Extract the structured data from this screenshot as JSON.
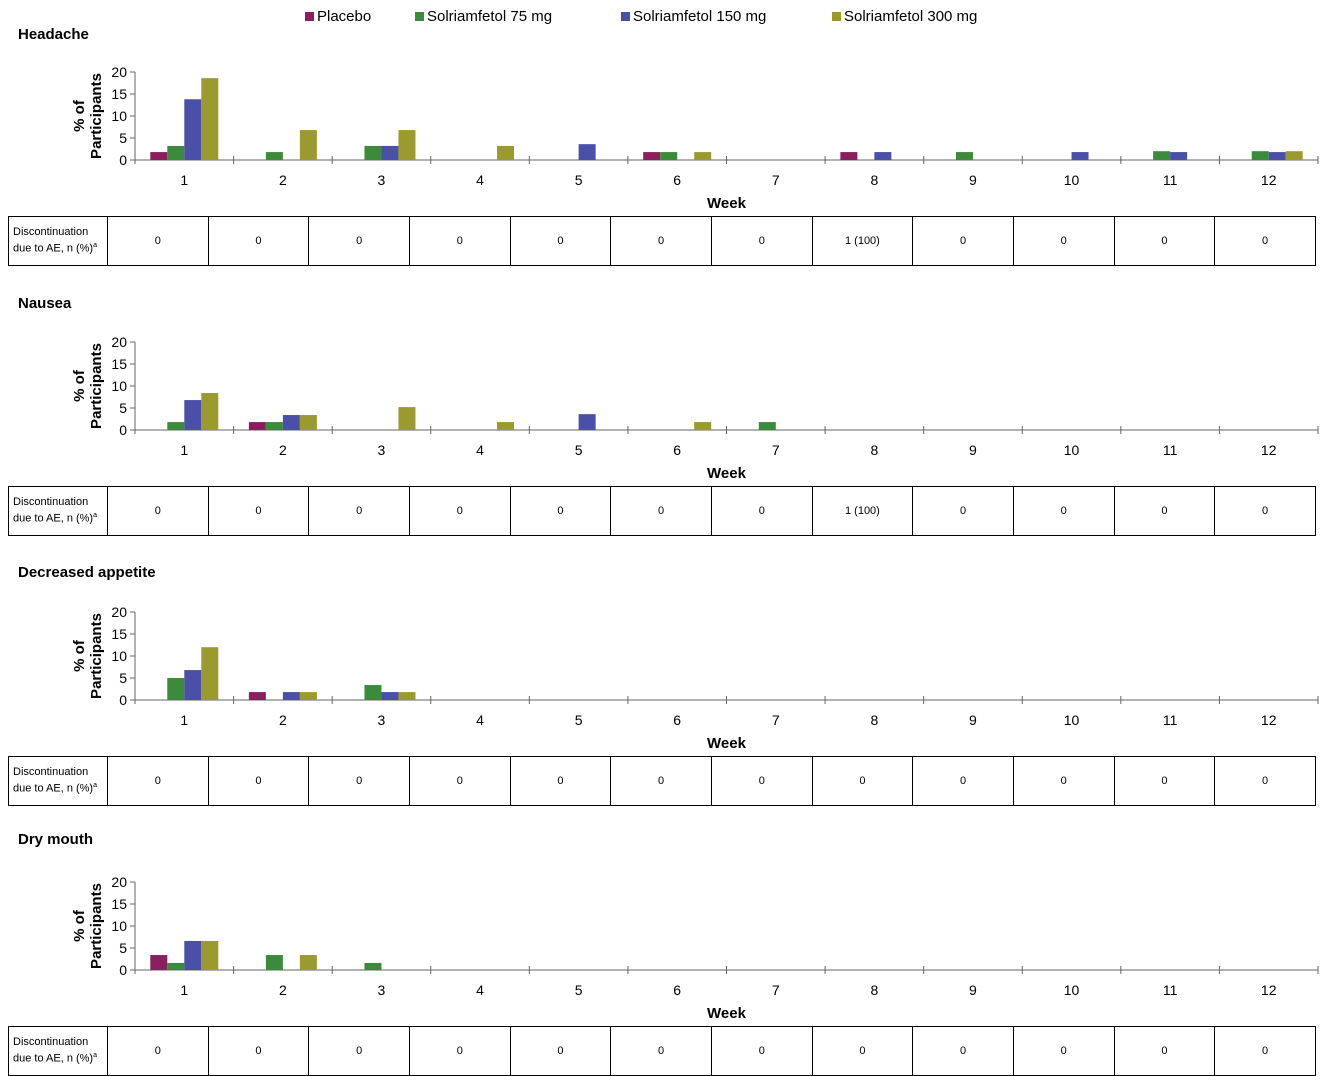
{
  "legend": [
    {
      "name": "Placebo",
      "color": "#8b1f5e"
    },
    {
      "name": "Solriamfetol 75 mg",
      "color": "#3c8a3c"
    },
    {
      "name": "Solriamfetol 150 mg",
      "color": "#4a4fa8"
    },
    {
      "name": "Solriamfetol 300 mg",
      "color": "#9a9a2e"
    }
  ],
  "axis": {
    "ylabel_line1": "% of",
    "ylabel_line2": "Participants",
    "xlabel": "Week"
  },
  "table_label_main": "Discontinuation due to AE, n (%)",
  "table_label_sup": "a",
  "chart_data": [
    {
      "type": "bar",
      "title": "Headache",
      "categories": [
        "1",
        "2",
        "3",
        "4",
        "5",
        "6",
        "7",
        "8",
        "9",
        "10",
        "11",
        "12"
      ],
      "ylim": [
        0,
        20
      ],
      "yticks": [
        0,
        5,
        10,
        15,
        20
      ],
      "series": [
        {
          "name": "Placebo",
          "values": [
            1.8,
            0,
            0,
            0,
            0,
            1.8,
            0,
            1.8,
            0,
            0,
            0,
            0
          ]
        },
        {
          "name": "Solriamfetol 75 mg",
          "values": [
            3.2,
            1.8,
            3.2,
            0,
            0,
            1.8,
            0,
            0,
            1.8,
            0,
            2.0,
            2.0
          ]
        },
        {
          "name": "Solriamfetol 150 mg",
          "values": [
            13.8,
            0,
            3.2,
            0,
            3.6,
            0,
            0,
            1.8,
            0,
            1.8,
            1.8,
            1.8
          ]
        },
        {
          "name": "Solriamfetol 300 mg",
          "values": [
            18.6,
            6.8,
            6.8,
            3.2,
            0,
            1.8,
            0,
            0,
            0,
            0,
            0,
            2.0
          ]
        }
      ],
      "discontinuation": [
        "0",
        "0",
        "0",
        "0",
        "0",
        "0",
        "0",
        "1 (100)",
        "0",
        "0",
        "0",
        "0"
      ]
    },
    {
      "type": "bar",
      "title": "Nausea",
      "categories": [
        "1",
        "2",
        "3",
        "4",
        "5",
        "6",
        "7",
        "8",
        "9",
        "10",
        "11",
        "12"
      ],
      "ylim": [
        0,
        20
      ],
      "yticks": [
        0,
        5,
        10,
        15,
        20
      ],
      "series": [
        {
          "name": "Placebo",
          "values": [
            0,
            1.8,
            0,
            0,
            0,
            0,
            0,
            0,
            0,
            0,
            0,
            0
          ]
        },
        {
          "name": "Solriamfetol 75 mg",
          "values": [
            1.8,
            1.8,
            0,
            0,
            0,
            0,
            1.8,
            0,
            0,
            0,
            0,
            0
          ]
        },
        {
          "name": "Solriamfetol 150 mg",
          "values": [
            6.8,
            3.4,
            0,
            0,
            3.6,
            0,
            0,
            0,
            0,
            0,
            0,
            0
          ]
        },
        {
          "name": "Solriamfetol 300 mg",
          "values": [
            8.4,
            3.4,
            5.2,
            1.8,
            0,
            1.8,
            0,
            0,
            0,
            0,
            0,
            0
          ]
        }
      ],
      "discontinuation": [
        "0",
        "0",
        "0",
        "0",
        "0",
        "0",
        "0",
        "1 (100)",
        "0",
        "0",
        "0",
        "0"
      ]
    },
    {
      "type": "bar",
      "title": "Decreased appetite",
      "categories": [
        "1",
        "2",
        "3",
        "4",
        "5",
        "6",
        "7",
        "8",
        "9",
        "10",
        "11",
        "12"
      ],
      "ylim": [
        0,
        20
      ],
      "yticks": [
        0,
        5,
        10,
        15,
        20
      ],
      "series": [
        {
          "name": "Placebo",
          "values": [
            0,
            1.8,
            0,
            0,
            0,
            0,
            0,
            0,
            0,
            0,
            0,
            0
          ]
        },
        {
          "name": "Solriamfetol 75 mg",
          "values": [
            5.0,
            0,
            3.4,
            0,
            0,
            0,
            0,
            0,
            0,
            0,
            0,
            0
          ]
        },
        {
          "name": "Solriamfetol 150 mg",
          "values": [
            6.8,
            1.8,
            1.8,
            0,
            0,
            0,
            0,
            0,
            0,
            0,
            0,
            0
          ]
        },
        {
          "name": "Solriamfetol 300 mg",
          "values": [
            12.0,
            1.8,
            1.8,
            0,
            0,
            0,
            0,
            0,
            0,
            0,
            0,
            0
          ]
        }
      ],
      "discontinuation": [
        "0",
        "0",
        "0",
        "0",
        "0",
        "0",
        "0",
        "0",
        "0",
        "0",
        "0",
        "0"
      ]
    },
    {
      "type": "bar",
      "title": "Dry mouth",
      "categories": [
        "1",
        "2",
        "3",
        "4",
        "5",
        "6",
        "7",
        "8",
        "9",
        "10",
        "11",
        "12"
      ],
      "ylim": [
        0,
        20
      ],
      "yticks": [
        0,
        5,
        10,
        15,
        20
      ],
      "series": [
        {
          "name": "Placebo",
          "values": [
            3.4,
            0,
            0,
            0,
            0,
            0,
            0,
            0,
            0,
            0,
            0,
            0
          ]
        },
        {
          "name": "Solriamfetol 75 mg",
          "values": [
            1.6,
            3.4,
            1.6,
            0,
            0,
            0,
            0,
            0,
            0,
            0,
            0,
            0
          ]
        },
        {
          "name": "Solriamfetol 150 mg",
          "values": [
            6.6,
            0,
            0,
            0,
            0,
            0,
            0,
            0,
            0,
            0,
            0,
            0
          ]
        },
        {
          "name": "Solriamfetol 300 mg",
          "values": [
            6.6,
            3.4,
            0,
            0,
            0,
            0,
            0,
            0,
            0,
            0,
            0,
            0
          ]
        }
      ],
      "discontinuation": [
        "0",
        "0",
        "0",
        "0",
        "0",
        "0",
        "0",
        "0",
        "0",
        "0",
        "0",
        "0"
      ]
    }
  ]
}
